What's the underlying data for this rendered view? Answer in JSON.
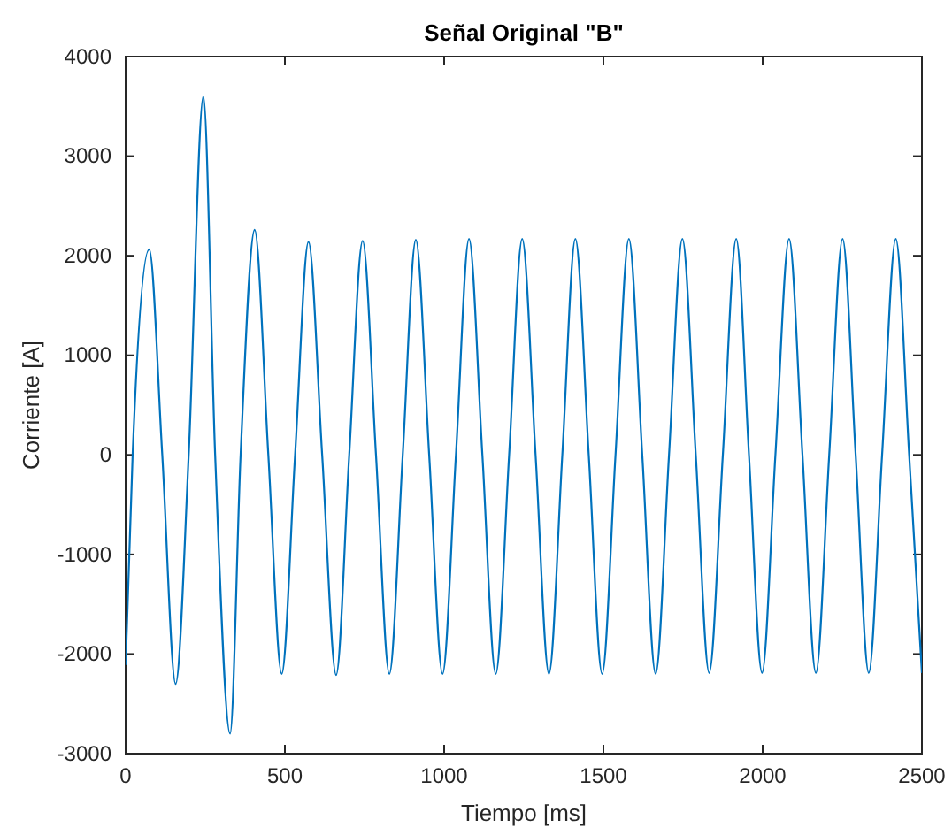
{
  "chart_data": {
    "type": "line",
    "title": "Señal Original \"B\"",
    "xlabel": "Tiempo [ms]",
    "ylabel": "Corriente [A]",
    "x": [
      0,
      22,
      74,
      115,
      157,
      198,
      244,
      281,
      328,
      361,
      405,
      448,
      490,
      532,
      574,
      617,
      661,
      702,
      744,
      786,
      828,
      870,
      911,
      953,
      995,
      1037,
      1078,
      1120,
      1162,
      1204,
      1245,
      1287,
      1329,
      1371,
      1412,
      1454,
      1496,
      1538,
      1580,
      1622,
      1664,
      1706,
      1748,
      1790,
      1832,
      1875,
      1917,
      1957,
      1998,
      2040,
      2083,
      2125,
      2167,
      2209,
      2251,
      2292,
      2333,
      2375,
      2418,
      2460,
      2500
    ],
    "series": [
      {
        "color": "#0072bd",
        "values": [
          -2110,
          0,
          2065,
          0,
          -2300,
          0,
          3600,
          0,
          -2800,
          0,
          2260,
          0,
          -2200,
          0,
          2140,
          0,
          -2210,
          0,
          2150,
          0,
          -2200,
          0,
          2160,
          0,
          -2200,
          0,
          2170,
          0,
          -2200,
          0,
          2170,
          0,
          -2200,
          0,
          2170,
          0,
          -2200,
          0,
          2170,
          0,
          -2200,
          0,
          2170,
          0,
          -2190,
          0,
          2170,
          0,
          -2190,
          0,
          2170,
          0,
          -2190,
          0,
          2170,
          0,
          -2190,
          0,
          2170,
          0,
          -2190
        ]
      }
    ],
    "xlim": [
      0,
      2500
    ],
    "xticks": [
      0,
      500,
      1000,
      1500,
      2000,
      2500
    ],
    "ylim": [
      -3000,
      4000
    ],
    "yticks": [
      -3000,
      -2000,
      -1000,
      0,
      1000,
      2000,
      3000,
      4000
    ],
    "grid": false,
    "legend": false,
    "marker": "none",
    "line_style": "solid"
  }
}
